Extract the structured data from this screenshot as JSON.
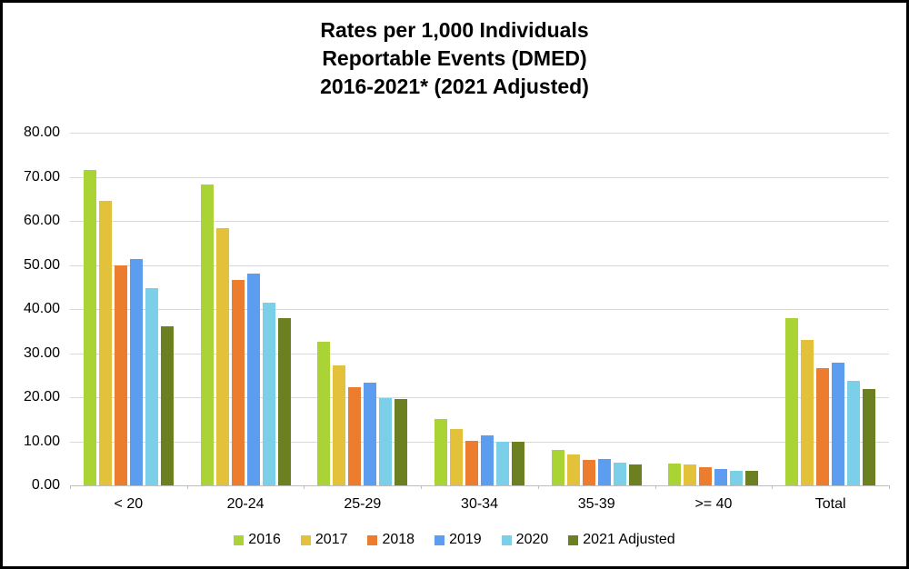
{
  "chart_data": {
    "type": "bar",
    "title_lines": [
      "Rates per 1,000 Individuals",
      "Reportable Events (DMED)",
      "2016-2021* (2021 Adjusted)"
    ],
    "categories": [
      "< 20",
      "20-24",
      "25-29",
      "30-34",
      "35-39",
      ">= 40",
      "Total"
    ],
    "series": [
      {
        "name": "2016",
        "color": "#AAD335",
        "values": [
          71.5,
          68.2,
          32.5,
          15.1,
          8.1,
          5.0,
          37.9
        ]
      },
      {
        "name": "2017",
        "color": "#E4C13A",
        "values": [
          64.5,
          58.4,
          27.2,
          12.8,
          7.0,
          4.8,
          33.0
        ]
      },
      {
        "name": "2018",
        "color": "#ED7D2E",
        "values": [
          49.8,
          46.5,
          22.3,
          10.2,
          5.7,
          4.2,
          26.6
        ]
      },
      {
        "name": "2019",
        "color": "#5C9DF0",
        "values": [
          51.4,
          48.1,
          23.3,
          11.4,
          6.0,
          3.8,
          27.8
        ]
      },
      {
        "name": "2020",
        "color": "#7CCFE9",
        "values": [
          44.7,
          41.4,
          19.8,
          9.8,
          5.1,
          3.2,
          23.7
        ]
      },
      {
        "name": "2021 Adjusted",
        "color": "#6C7F21",
        "values": [
          36.0,
          37.9,
          19.5,
          9.9,
          4.7,
          3.4,
          21.9
        ]
      }
    ],
    "yticks": [
      "80.00",
      "70.00",
      "60.00",
      "50.00",
      "40.00",
      "30.00",
      "20.00",
      "10.00",
      "0.00"
    ],
    "ylim": [
      0,
      80
    ],
    "xlabel": "",
    "ylabel": "",
    "grid": true,
    "legend_position": "bottom"
  },
  "colors": {
    "gridline": "#D9D9D9",
    "axis": "#BFBFBF",
    "text": "#000000",
    "background": "#FFFFFF",
    "frame_border": "#000000"
  }
}
